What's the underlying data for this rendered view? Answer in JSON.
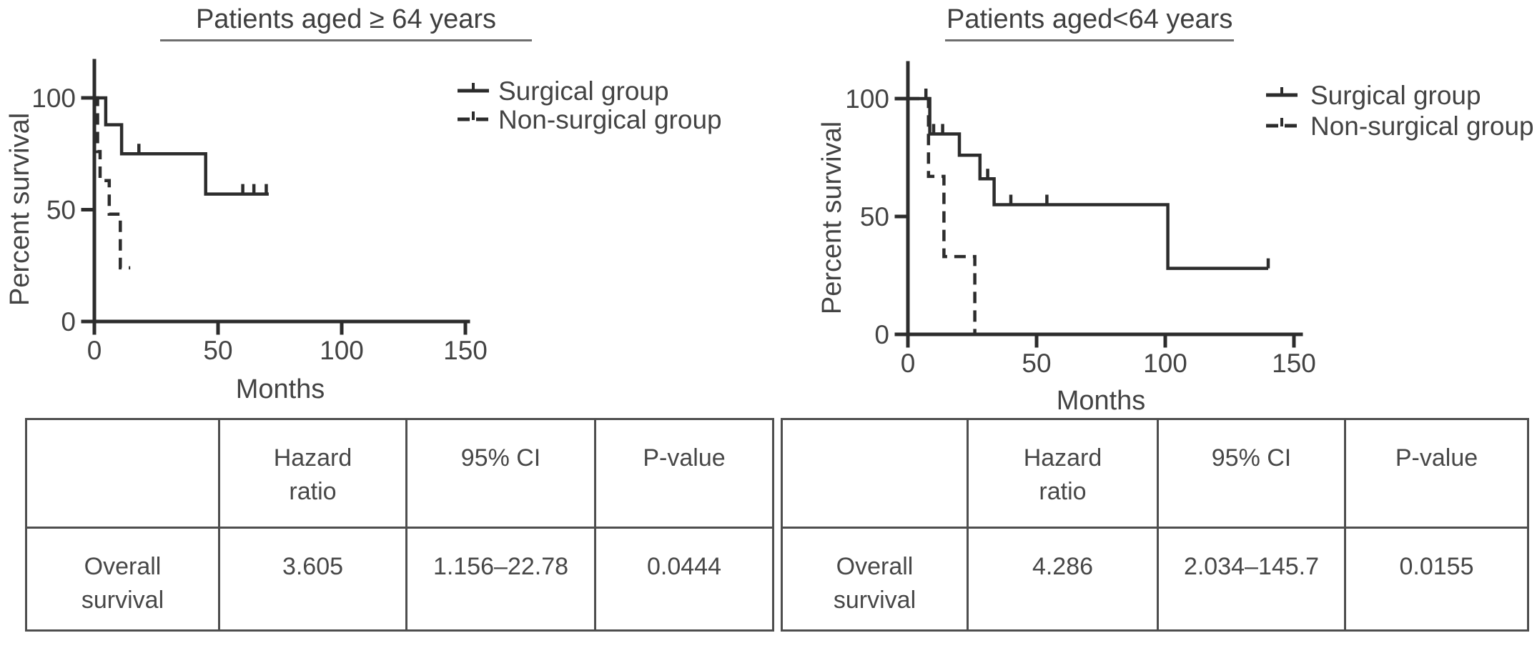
{
  "chart_data": [
    {
      "type": "line",
      "subtype": "kaplan_meier_step",
      "title": "Patients aged ≥ 64 years",
      "xlabel": "Months",
      "ylabel": "Percent survival",
      "xlim": [
        0,
        150
      ],
      "ylim": [
        0,
        100
      ],
      "x_ticks": [
        0,
        50,
        100,
        150
      ],
      "y_ticks": [
        0,
        50,
        100
      ],
      "grid": false,
      "legend_position": "top-right",
      "series": [
        {
          "name": "Surgical group",
          "line_style": "solid",
          "points": [
            [
              0,
              100
            ],
            [
              4.6,
              100
            ],
            [
              4.6,
              88
            ],
            [
              11,
              88
            ],
            [
              11,
              75
            ],
            [
              45,
              75
            ],
            [
              45,
              57
            ],
            [
              70.5,
              57
            ]
          ],
          "censor_marks": [
            [
              18,
              75
            ],
            [
              60,
              57
            ],
            [
              64.5,
              57
            ],
            [
              69.5,
              57
            ]
          ]
        },
        {
          "name": "Non-surgical group",
          "line_style": "dashed",
          "points": [
            [
              0,
              100
            ],
            [
              1.3,
              100
            ],
            [
              1.3,
              76
            ],
            [
              2.3,
              76
            ],
            [
              2.3,
              63
            ],
            [
              6,
              63
            ],
            [
              6,
              48
            ],
            [
              10.5,
              48
            ],
            [
              10.5,
              24
            ],
            [
              14.5,
              24
            ]
          ],
          "censor_marks": []
        }
      ],
      "table": {
        "headers": [
          "",
          "Hazard ratio",
          "95% CI",
          "P-value"
        ],
        "rows": [
          [
            "Overall survival",
            "3.605",
            "1.156–22.78",
            "0.0444"
          ]
        ]
      }
    },
    {
      "type": "line",
      "subtype": "kaplan_meier_step",
      "title": "Patients aged<64 years",
      "xlabel": "Months",
      "ylabel": "Percent survival",
      "xlim": [
        0,
        150
      ],
      "ylim": [
        0,
        100
      ],
      "x_ticks": [
        0,
        50,
        100,
        150
      ],
      "y_ticks": [
        0,
        50,
        100
      ],
      "grid": false,
      "legend_position": "top-right",
      "series": [
        {
          "name": "Surgical group",
          "line_style": "solid",
          "points": [
            [
              0,
              100
            ],
            [
              8.5,
              100
            ],
            [
              8.5,
              85
            ],
            [
              20,
              85
            ],
            [
              20,
              76
            ],
            [
              28,
              76
            ],
            [
              28,
              66
            ],
            [
              33.5,
              66
            ],
            [
              33.5,
              55
            ],
            [
              101,
              55
            ],
            [
              101,
              28
            ],
            [
              140,
              28
            ]
          ],
          "censor_marks": [
            [
              7,
              100
            ],
            [
              10,
              85
            ],
            [
              13.5,
              85
            ],
            [
              31,
              66
            ],
            [
              40,
              55
            ],
            [
              54,
              55
            ],
            [
              140,
              28
            ]
          ]
        },
        {
          "name": "Non-surgical group",
          "line_style": "dashed",
          "points": [
            [
              0,
              100
            ],
            [
              8,
              100
            ],
            [
              8,
              67
            ],
            [
              14,
              67
            ],
            [
              14,
              33
            ],
            [
              26,
              33
            ],
            [
              26,
              0
            ]
          ],
          "censor_marks": []
        }
      ],
      "table": {
        "headers": [
          "",
          "Hazard ratio",
          "95% CI",
          "P-value"
        ],
        "rows": [
          [
            "Overall survival",
            "4.286",
            "2.034–145.7",
            "0.0155"
          ]
        ]
      }
    }
  ],
  "colors": {
    "line_ink": "#2c2c2c",
    "text_ink": "#434343",
    "table_border": "#4e4e4e"
  }
}
